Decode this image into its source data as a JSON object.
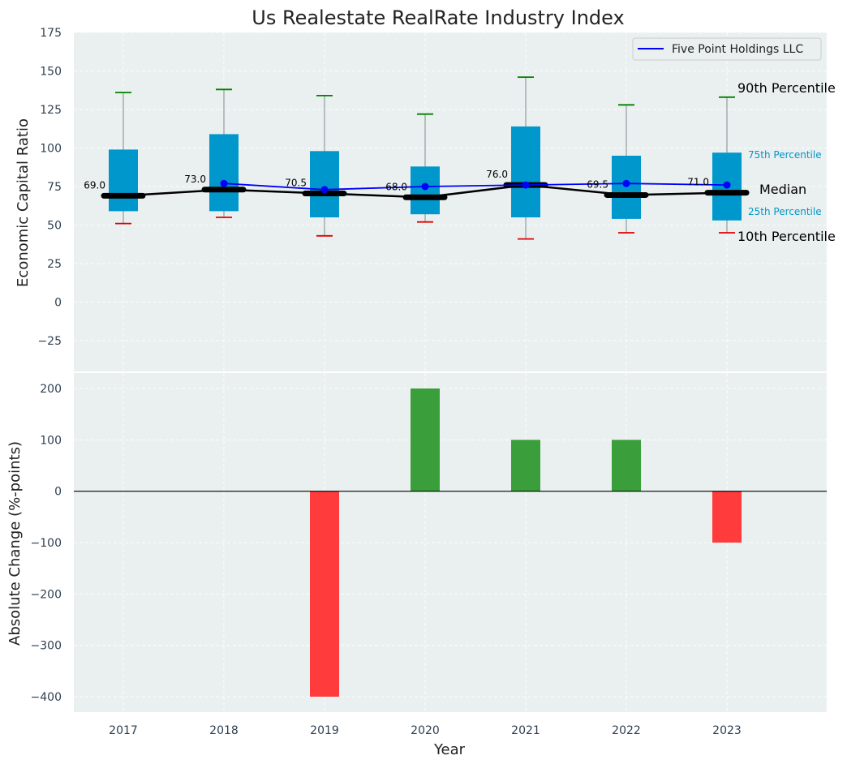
{
  "colors": {
    "panel_bg": "#eaeff0",
    "box": "#0098cc",
    "company_line": "#0000ff",
    "median_line": "#000000",
    "whisker_top": "#008000",
    "whisker_bottom": "#e00000",
    "positive_bar": "#3a9e3a",
    "negative_bar": "#ff3b3b",
    "quartile_text": "#0098c6"
  },
  "chart_data": [
    {
      "type": "box",
      "title": "Us Realestate RealRate Industry Index",
      "ylabel": "Economic Capital Ratio",
      "ylim": [
        -45,
        175
      ],
      "yticks": [
        -25,
        0,
        25,
        50,
        75,
        100,
        125,
        150,
        175
      ],
      "yticklabels": [
        "−25",
        "0",
        "25",
        "50",
        "75",
        "100",
        "125",
        "150",
        "175"
      ],
      "categories": [
        "2017",
        "2018",
        "2019",
        "2020",
        "2021",
        "2022",
        "2023"
      ],
      "p10": [
        51,
        55,
        43,
        52,
        41,
        45,
        45
      ],
      "p25": [
        59,
        59,
        55,
        57,
        55,
        54,
        53
      ],
      "median": [
        69.0,
        73.0,
        70.5,
        68.0,
        76.0,
        69.5,
        71.0
      ],
      "median_labels": [
        "69.0",
        "73.0",
        "70.5",
        "68.0",
        "76.0",
        "69.5",
        "71.0"
      ],
      "p75": [
        99,
        109,
        98,
        88,
        114,
        95,
        97
      ],
      "p90": [
        136,
        138,
        134,
        122,
        146,
        128,
        133
      ],
      "series": [
        {
          "name": "Five Point Holdings LLC",
          "values": [
            null,
            77,
            73,
            75,
            76,
            77,
            76
          ]
        }
      ],
      "legend": {
        "position": "top-right",
        "label": "Five Point Holdings LLC"
      },
      "annotations": {
        "p90": "90th Percentile",
        "p75": "75th Percentile",
        "median": "Median",
        "p25": "25th Percentile",
        "p10": "10th Percentile"
      },
      "grid": true
    },
    {
      "type": "bar",
      "ylabel": "Absolute Change (%-points)",
      "xlabel": "Year",
      "ylim": [
        -430,
        230
      ],
      "yticks": [
        -400,
        -300,
        -200,
        -100,
        0,
        100,
        200
      ],
      "yticklabels": [
        "−400",
        "−300",
        "−200",
        "−100",
        "0",
        "100",
        "200"
      ],
      "categories": [
        "2017",
        "2018",
        "2019",
        "2020",
        "2021",
        "2022",
        "2023"
      ],
      "values": [
        0,
        0,
        -400,
        200,
        100,
        100,
        -100
      ],
      "grid": true
    }
  ]
}
